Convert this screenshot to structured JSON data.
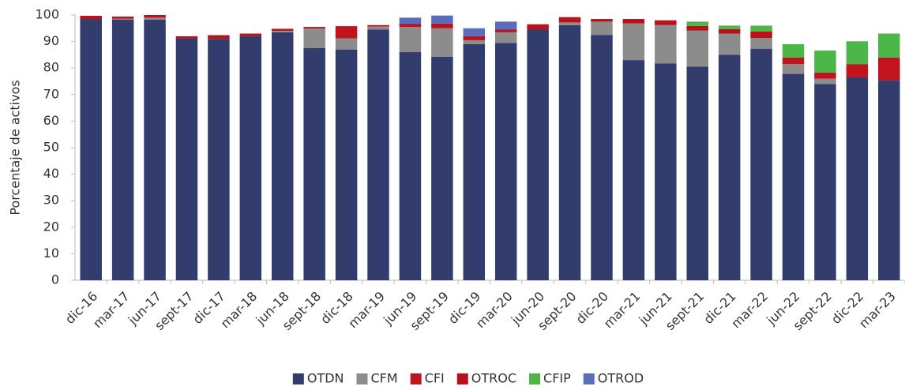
{
  "chart_data": {
    "type": "stacked-bar",
    "y_label": "Porcentaje de activos",
    "categories": [
      "dic-16",
      "mar-17",
      "jun-17",
      "sept-17",
      "dic-17",
      "mar-18",
      "jun-18",
      "sept-18",
      "dic-18",
      "mar-19",
      "jun-19",
      "sept-19",
      "dic-19",
      "mar-20",
      "jun-20",
      "sept-20",
      "dic-20",
      "mar-21",
      "jun-21",
      "sept-21",
      "dic-21",
      "mar-22",
      "jun-22",
      "sept-22",
      "dic-22",
      "mar-23"
    ],
    "series": [
      {
        "name": "OTDN",
        "color": "#323d6d",
        "values": [
          98.5,
          98.3,
          98.3,
          91.2,
          91,
          92,
          93.5,
          87.5,
          87,
          94.5,
          86,
          84.3,
          89,
          89.5,
          94.5,
          96.2,
          92.5,
          83,
          81.7,
          80.5,
          85,
          87.3,
          77.8,
          74,
          76.5,
          75.5
        ]
      },
      {
        "name": "CFM",
        "color": "#8c8c8c",
        "values": [
          0,
          0.3,
          0.7,
          0,
          0,
          0,
          0.5,
          7.4,
          4.2,
          1.2,
          9.5,
          10.7,
          1.5,
          4,
          0,
          1,
          5,
          13.8,
          14.5,
          13.6,
          8,
          4,
          3.7,
          2,
          0,
          0
        ]
      },
      {
        "name": "CFI",
        "color": "#c2141f",
        "values": [
          0,
          0,
          0,
          0,
          0,
          0,
          0,
          0,
          4.6,
          0,
          0,
          0,
          0,
          0,
          0,
          0,
          0,
          0,
          0,
          0,
          0,
          0,
          2.5,
          2.3,
          5,
          8.5
        ]
      },
      {
        "name": "OTROC",
        "color": "#b8121c",
        "values": [
          1.2,
          0.8,
          1,
          0.8,
          1.4,
          1,
          0.8,
          0.6,
          0,
          0.5,
          1.2,
          1.8,
          1.5,
          1,
          2,
          2,
          1,
          1.7,
          1.8,
          1.8,
          1.7,
          2.5,
          0,
          0,
          0,
          0
        ]
      },
      {
        "name": "CFIP",
        "color": "#4cb648",
        "values": [
          0,
          0,
          0,
          0,
          0,
          0,
          0,
          0,
          0,
          0,
          0,
          0,
          0,
          0,
          0,
          0,
          0,
          0,
          0,
          1.6,
          1.3,
          2.2,
          5,
          8.3,
          8.6,
          9
        ]
      },
      {
        "name": "OTROD",
        "color": "#5a6cbd",
        "values": [
          0,
          0,
          0,
          0,
          0,
          0,
          0,
          0,
          0,
          0,
          2.3,
          3,
          3,
          3,
          0,
          0,
          0,
          0,
          0,
          0,
          0,
          0,
          0,
          0,
          0,
          0
        ]
      }
    ],
    "ylim": [
      0,
      100
    ],
    "yticks": [
      0,
      10,
      20,
      30,
      40,
      50,
      60,
      70,
      80,
      90,
      100
    ]
  }
}
